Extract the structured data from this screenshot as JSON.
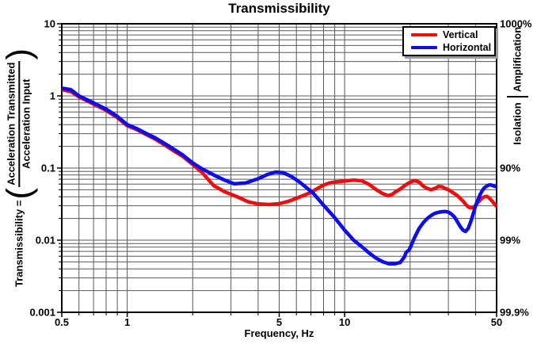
{
  "title": "Transmissibility",
  "left_label": {
    "prefix": "Transmissibility =",
    "numerator": "Acceleration Transmitted",
    "denominator": "Acceleration Input"
  },
  "right_band": {
    "upper": "Amplification",
    "lower": "Isolation"
  },
  "legend": [
    {
      "label": "Vertical",
      "color": "#f00c0c"
    },
    {
      "label": "Horizontal",
      "color": "#0c0cf0"
    }
  ],
  "colors": {
    "grid": "#585858",
    "axis": "#000000",
    "legend_shadow": "#9c9c9c"
  },
  "chart_data": {
    "type": "line",
    "title": "Transmissibility",
    "xlabel": "Frequency, Hz",
    "ylabel": "Transmissibility = (Acceleration Transmitted / Acceleration Input)",
    "xscale": "log",
    "yscale": "log",
    "xlim": [
      0.5,
      50
    ],
    "ylim": [
      0.001,
      10
    ],
    "grid": true,
    "legend_position": "top-right",
    "x_ticks": [
      {
        "value": 0.5,
        "label": "0.5"
      },
      {
        "value": 1,
        "label": "1"
      },
      {
        "value": 5,
        "label": "5"
      },
      {
        "value": 10,
        "label": "10"
      },
      {
        "value": 50,
        "label": "50"
      }
    ],
    "y_ticks": [
      {
        "value": 10,
        "label": "10"
      },
      {
        "value": 1,
        "label": "1"
      },
      {
        "value": 0.1,
        "label": "0.1"
      },
      {
        "value": 0.01,
        "label": "0.01"
      },
      {
        "value": 0.001,
        "label": "0.001"
      }
    ],
    "right_ticks": [
      {
        "value": 10,
        "label": "1000%"
      },
      {
        "value": 0.1,
        "label": "90%"
      },
      {
        "value": 0.01,
        "label": "99%"
      },
      {
        "value": 0.001,
        "label": "99.9%"
      }
    ],
    "x_grid": [
      0.6,
      0.7,
      0.8,
      0.9,
      1,
      2,
      3,
      4,
      5,
      6,
      7,
      8,
      9,
      10,
      20,
      30,
      40
    ],
    "y_grid": [
      0.002,
      0.003,
      0.004,
      0.005,
      0.006,
      0.007,
      0.008,
      0.009,
      0.01,
      0.02,
      0.03,
      0.04,
      0.05,
      0.06,
      0.07,
      0.08,
      0.09,
      0.1,
      0.2,
      0.3,
      0.4,
      0.5,
      0.6,
      0.7,
      0.8,
      0.9,
      1,
      2,
      3,
      4,
      5,
      6,
      7,
      8,
      9
    ],
    "series": [
      {
        "name": "Vertical",
        "color": "#f00c0c",
        "x": [
          0.5,
          0.55,
          0.6,
          0.7,
          0.8,
          0.9,
          1.0,
          1.1,
          1.2,
          1.35,
          1.5,
          1.65,
          1.8,
          2.0,
          2.2,
          2.5,
          2.8,
          3.2,
          3.6,
          4.0,
          4.5,
          5.0,
          5.5,
          6.0,
          6.5,
          7.0,
          7.5,
          8.0,
          8.5,
          9.0,
          10,
          11,
          12,
          13,
          14,
          15,
          15.8,
          16.5,
          17,
          18,
          19,
          20,
          21,
          22,
          23,
          24,
          25,
          26,
          27,
          28,
          29,
          30,
          31,
          32,
          33,
          34,
          35,
          36,
          37,
          38,
          39,
          40,
          41,
          42,
          43,
          44,
          45,
          46,
          47,
          48,
          49,
          50
        ],
        "y": [
          1.22,
          1.15,
          0.97,
          0.77,
          0.63,
          0.5,
          0.385,
          0.345,
          0.3,
          0.25,
          0.205,
          0.17,
          0.145,
          0.112,
          0.088,
          0.057,
          0.047,
          0.04,
          0.034,
          0.0318,
          0.0312,
          0.032,
          0.0345,
          0.038,
          0.042,
          0.046,
          0.052,
          0.058,
          0.062,
          0.064,
          0.066,
          0.068,
          0.0665,
          0.059,
          0.05,
          0.044,
          0.0415,
          0.043,
          0.046,
          0.051,
          0.058,
          0.0635,
          0.067,
          0.064,
          0.056,
          0.052,
          0.05,
          0.052,
          0.0555,
          0.055,
          0.052,
          0.05,
          0.047,
          0.044,
          0.0415,
          0.038,
          0.035,
          0.0315,
          0.029,
          0.028,
          0.0285,
          0.03,
          0.0335,
          0.036,
          0.0385,
          0.04,
          0.0405,
          0.039,
          0.0365,
          0.034,
          0.0315,
          0.0295
        ]
      },
      {
        "name": "Horizontal",
        "color": "#0c0cf0",
        "x": [
          0.5,
          0.55,
          0.6,
          0.7,
          0.8,
          0.9,
          1.0,
          1.1,
          1.2,
          1.35,
          1.5,
          1.65,
          1.8,
          2.0,
          2.2,
          2.5,
          2.8,
          3.1,
          3.5,
          4.0,
          4.4,
          4.8,
          5.2,
          5.7,
          6.2,
          6.7,
          7.2,
          8.0,
          9.0,
          10,
          11,
          12,
          13,
          14,
          15,
          16,
          17,
          18,
          18.8,
          19.2,
          19.8,
          21,
          22,
          23,
          24,
          25,
          26,
          27,
          28,
          29,
          30,
          31,
          32,
          33,
          34,
          35,
          36,
          37,
          38,
          39,
          40,
          41,
          42,
          43,
          44,
          45,
          46,
          47,
          48,
          49,
          50
        ],
        "y": [
          1.28,
          1.22,
          1.0,
          0.8,
          0.655,
          0.52,
          0.4,
          0.355,
          0.31,
          0.26,
          0.215,
          0.18,
          0.152,
          0.118,
          0.098,
          0.08,
          0.068,
          0.0605,
          0.062,
          0.071,
          0.081,
          0.088,
          0.0865,
          0.076,
          0.064,
          0.053,
          0.044,
          0.0305,
          0.0205,
          0.0138,
          0.01,
          0.0081,
          0.0066,
          0.0056,
          0.005,
          0.0047,
          0.0047,
          0.0049,
          0.0058,
          0.0068,
          0.0073,
          0.011,
          0.0145,
          0.0175,
          0.02,
          0.022,
          0.0235,
          0.0243,
          0.0248,
          0.025,
          0.0245,
          0.023,
          0.021,
          0.018,
          0.0155,
          0.0138,
          0.0132,
          0.0145,
          0.018,
          0.023,
          0.03,
          0.036,
          0.043,
          0.049,
          0.0535,
          0.056,
          0.058,
          0.0585,
          0.057,
          0.056,
          0.055
        ]
      }
    ]
  }
}
